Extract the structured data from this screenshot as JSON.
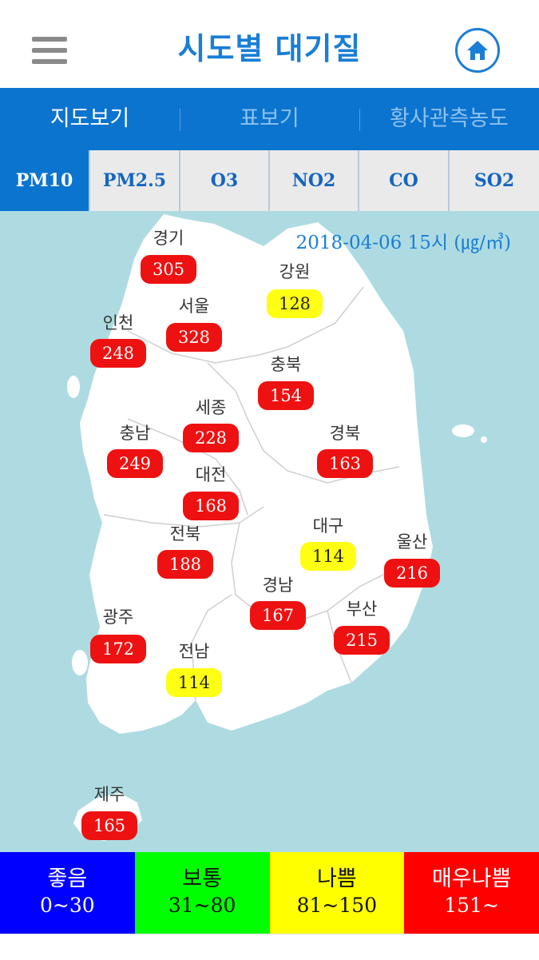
{
  "header": {
    "title": "시도별 대기질",
    "menu_icon": "hamburger-menu-icon",
    "home_icon": "home-icon"
  },
  "tabs": [
    {
      "label": "지도보기",
      "active": true
    },
    {
      "label": "표보기",
      "active": false
    },
    {
      "label": "황사관측농도",
      "active": false
    }
  ],
  "pollutants": [
    {
      "label": "PM10",
      "active": true
    },
    {
      "label": "PM2.5",
      "active": false
    },
    {
      "label": "O3",
      "active": false
    },
    {
      "label": "NO2",
      "active": false
    },
    {
      "label": "CO",
      "active": false
    },
    {
      "label": "SO2",
      "active": false
    }
  ],
  "map": {
    "timestamp": "2018-04-06 15시 (㎍/㎥)",
    "regions": [
      {
        "name": "경기",
        "value": "305",
        "level": "red"
      },
      {
        "name": "강원",
        "value": "128",
        "level": "yellow"
      },
      {
        "name": "서울",
        "value": "328",
        "level": "red"
      },
      {
        "name": "인천",
        "value": "248",
        "level": "red"
      },
      {
        "name": "충북",
        "value": "154",
        "level": "red"
      },
      {
        "name": "세종",
        "value": "228",
        "level": "red"
      },
      {
        "name": "충남",
        "value": "249",
        "level": "red"
      },
      {
        "name": "경북",
        "value": "163",
        "level": "red"
      },
      {
        "name": "대전",
        "value": "168",
        "level": "red"
      },
      {
        "name": "전북",
        "value": "188",
        "level": "red"
      },
      {
        "name": "대구",
        "value": "114",
        "level": "yellow"
      },
      {
        "name": "울산",
        "value": "216",
        "level": "red"
      },
      {
        "name": "경남",
        "value": "167",
        "level": "red"
      },
      {
        "name": "부산",
        "value": "215",
        "level": "red"
      },
      {
        "name": "광주",
        "value": "172",
        "level": "red"
      },
      {
        "name": "전남",
        "value": "114",
        "level": "yellow"
      },
      {
        "name": "제주",
        "value": "165",
        "level": "red"
      }
    ]
  },
  "legend": [
    {
      "label": "좋음",
      "range": "0~30",
      "color": "#0000ff",
      "text_color": "#ffffff"
    },
    {
      "label": "보통",
      "range": "31~80",
      "color": "#00ff00",
      "text_color": "#111111"
    },
    {
      "label": "나쁨",
      "range": "81~150",
      "color": "#ffff00",
      "text_color": "#111111"
    },
    {
      "label": "매우나쁨",
      "range": "151~",
      "color": "#ff0000",
      "text_color": "#ffffff"
    }
  ],
  "colors": {
    "accent": "#0b74cf",
    "title": "#1a7ed6",
    "map_water": "#aedbe2",
    "alert_red": "#ee1111",
    "alert_yellow": "#ffff14"
  }
}
